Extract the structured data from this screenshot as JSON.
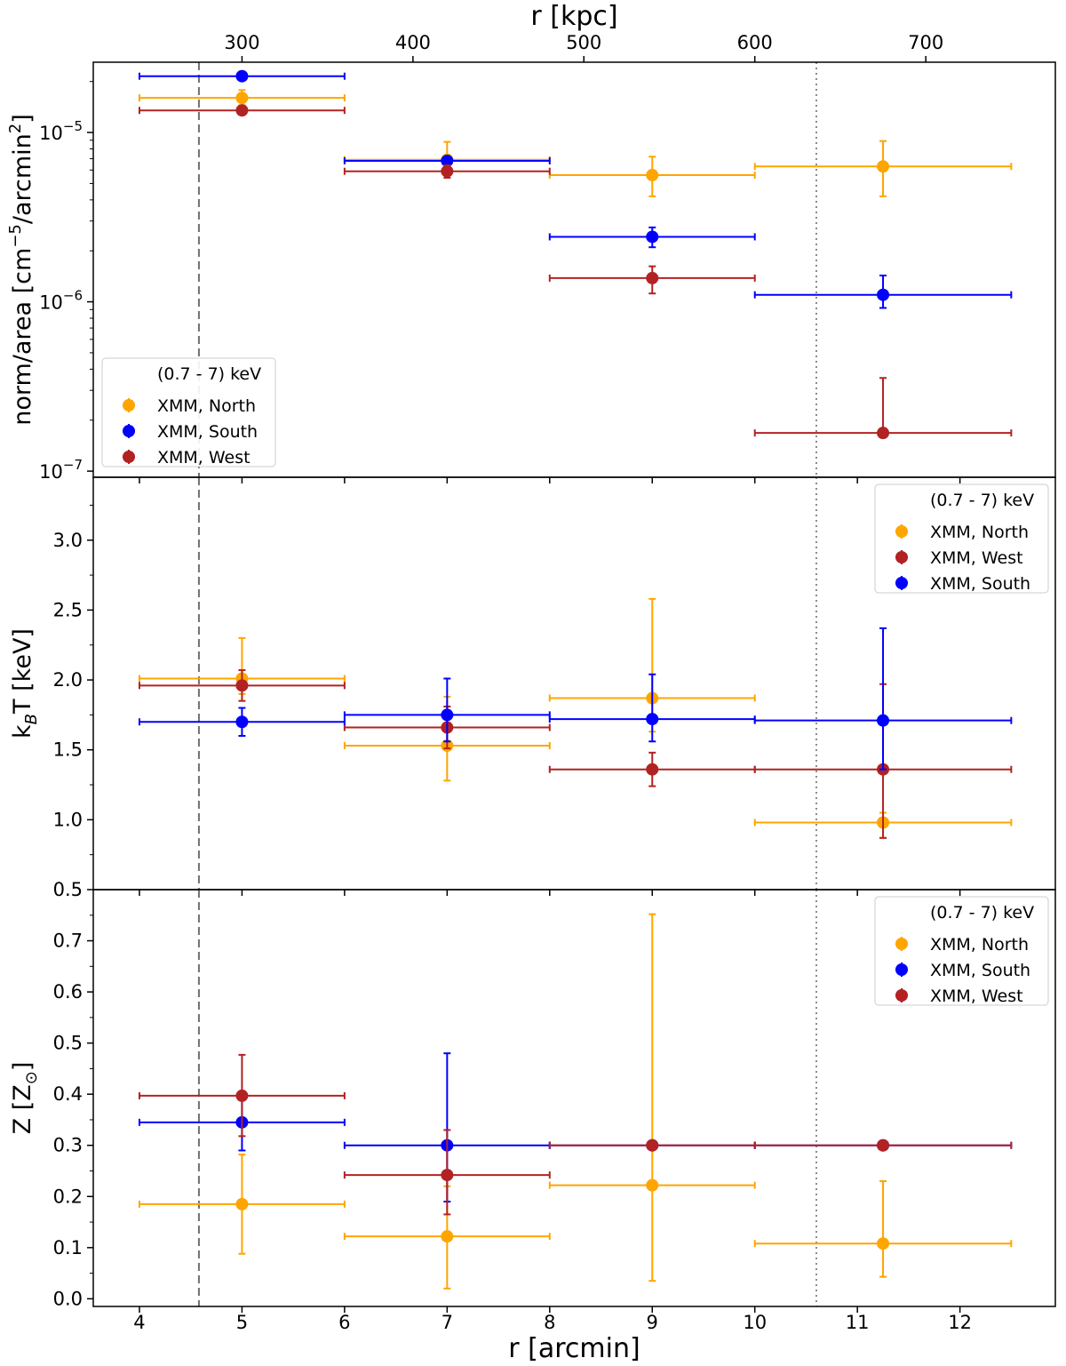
{
  "chart_data": {
    "type": "scatter",
    "x_axis": {
      "label": "r [arcmin]",
      "lim": [
        3.55,
        12.93
      ],
      "ticks": [
        4,
        5,
        6,
        7,
        8,
        9,
        10,
        11,
        12
      ],
      "tick_labels": [
        "4",
        "5",
        "6",
        "7",
        "8",
        "9",
        "10",
        "11",
        "12"
      ]
    },
    "top_axis": {
      "label": "r [kpc]",
      "ticks_arcmin": [
        5.0,
        6.667,
        8.333,
        10.0,
        11.667
      ],
      "tick_labels": [
        "300",
        "400",
        "500",
        "600",
        "700"
      ]
    },
    "reference_lines": [
      {
        "name": "dashed-line",
        "x": 4.58,
        "style": "dashed",
        "color": "#707070"
      },
      {
        "name": "dotted-line",
        "x": 10.6,
        "style": "dotted",
        "color": "#8a8a8a"
      }
    ],
    "series_colors": {
      "North": "#FFA500",
      "South": "#0000FF",
      "West": "#B22222"
    },
    "panels": [
      {
        "name": "norm",
        "ylabel": "norm/area [cm$^{-5}$/arcmin$^2$]",
        "yscale": "log",
        "ylim": [
          9.2e-08,
          2.6e-05
        ],
        "yticks": [
          1e-07,
          1e-06,
          1e-05
        ],
        "ytick_labels": [
          [
            "10",
            "−7"
          ],
          [
            "10",
            "−6"
          ],
          [
            "10",
            "−5"
          ]
        ],
        "legend": {
          "position": "lower-left",
          "title": "(0.7 - 7) keV",
          "order": [
            "North",
            "South",
            "West"
          ]
        },
        "series": [
          {
            "name": "XMM, North",
            "key": "North",
            "x": [
              5,
              7,
              9,
              11.25
            ],
            "xerr": [
              1,
              1,
              1,
              1.25
            ],
            "y": [
              1.6e-05,
              6.9e-06,
              5.6e-06,
              6.3e-06
            ],
            "ylo": [
              1.45e-05,
              5.8e-06,
              4.2e-06,
              4.2e-06
            ],
            "yhi": [
              1.78e-05,
              8.8e-06,
              7.2e-06,
              8.9e-06
            ]
          },
          {
            "name": "XMM, South",
            "key": "South",
            "x": [
              5,
              7,
              9,
              11.25
            ],
            "xerr": [
              1,
              1,
              1,
              1.25
            ],
            "y": [
              2.15e-05,
              6.8e-06,
              2.42e-06,
              1.1e-06
            ],
            "ylo": [
              2.15e-05,
              6.8e-06,
              2.1e-06,
              9.2e-07
            ],
            "yhi": [
              2.15e-05,
              6.8e-06,
              2.75e-06,
              1.43e-06
            ]
          },
          {
            "name": "XMM, West",
            "key": "West",
            "x": [
              5,
              7,
              9,
              11.25
            ],
            "xerr": [
              1,
              1,
              1,
              1.25
            ],
            "y": [
              1.35e-05,
              5.9e-06,
              1.38e-06,
              1.68e-07
            ],
            "ylo": [
              1.35e-05,
              5.4e-06,
              1.12e-06,
              1.68e-07
            ],
            "yhi": [
              1.35e-05,
              6.4e-06,
              1.62e-06,
              3.55e-07
            ]
          }
        ]
      },
      {
        "name": "temperature",
        "ylabel": "k_BT [keV]",
        "yscale": "linear",
        "ylim": [
          0.5,
          3.45
        ],
        "yticks": [
          0.5,
          1.0,
          1.5,
          2.0,
          2.5,
          3.0
        ],
        "ytick_labels": [
          "0.5",
          "1.0",
          "1.5",
          "2.0",
          "2.5",
          "3.0"
        ],
        "legend": {
          "position": "upper-right",
          "title": "(0.7 - 7) keV",
          "order": [
            "North",
            "West",
            "South"
          ]
        },
        "series": [
          {
            "name": "XMM, North",
            "key": "North",
            "x": [
              5,
              7,
              9,
              11.25
            ],
            "xerr": [
              1,
              1,
              1,
              1.25
            ],
            "y": [
              2.01,
              1.53,
              1.87,
              0.98
            ],
            "ylo": [
              1.9,
              1.28,
              1.63,
              0.87
            ],
            "yhi": [
              2.3,
              1.88,
              2.58,
              1.05
            ]
          },
          {
            "name": "XMM, West",
            "key": "West",
            "x": [
              5,
              7,
              9,
              11.25
            ],
            "xerr": [
              1,
              1,
              1,
              1.25
            ],
            "y": [
              1.96,
              1.66,
              1.36,
              1.36
            ],
            "ylo": [
              1.85,
              1.51,
              1.24,
              0.87
            ],
            "yhi": [
              2.07,
              1.81,
              1.48,
              1.97
            ]
          },
          {
            "name": "XMM, South",
            "key": "South",
            "x": [
              5,
              7,
              9,
              11.25
            ],
            "xerr": [
              1,
              1,
              1,
              1.25
            ],
            "y": [
              1.7,
              1.75,
              1.72,
              1.71
            ],
            "ylo": [
              1.6,
              1.56,
              1.56,
              1.36
            ],
            "yhi": [
              1.8,
              2.01,
              2.04,
              2.37
            ]
          }
        ]
      },
      {
        "name": "metallicity",
        "ylabel": "Z [Z_⊙]",
        "yscale": "linear",
        "ylim": [
          -0.015,
          0.8
        ],
        "yticks": [
          0.0,
          0.1,
          0.2,
          0.3,
          0.4,
          0.5,
          0.6,
          0.7
        ],
        "ytick_labels": [
          "0.0",
          "0.1",
          "0.2",
          "0.3",
          "0.4",
          "0.5",
          "0.6",
          "0.7"
        ],
        "legend": {
          "position": "upper-right",
          "title": "(0.7 - 7) keV",
          "order": [
            "North",
            "South",
            "West"
          ]
        },
        "series": [
          {
            "name": "XMM, North",
            "key": "North",
            "x": [
              5,
              7,
              9,
              11.25
            ],
            "xerr": [
              1,
              1,
              1,
              1.25
            ],
            "y": [
              0.185,
              0.122,
              0.222,
              0.108
            ],
            "ylo": [
              0.088,
              0.02,
              0.035,
              0.043
            ],
            "yhi": [
              0.282,
              0.22,
              0.752,
              0.23
            ]
          },
          {
            "name": "XMM, South",
            "key": "South",
            "x": [
              5,
              7,
              9,
              11.25
            ],
            "xerr": [
              1,
              1,
              1,
              1.25
            ],
            "y": [
              0.345,
              0.3,
              0.3,
              0.3
            ],
            "ylo": [
              0.29,
              0.19,
              0.3,
              0.3
            ],
            "yhi": [
              0.4,
              0.48,
              0.3,
              0.3
            ]
          },
          {
            "name": "XMM, West",
            "key": "West",
            "x": [
              5,
              7,
              9,
              11.25
            ],
            "xerr": [
              1,
              1,
              1,
              1.25
            ],
            "y": [
              0.397,
              0.242,
              0.3,
              0.3
            ],
            "ylo": [
              0.318,
              0.165,
              0.3,
              0.3
            ],
            "yhi": [
              0.477,
              0.33,
              0.3,
              0.3
            ]
          }
        ]
      }
    ]
  }
}
